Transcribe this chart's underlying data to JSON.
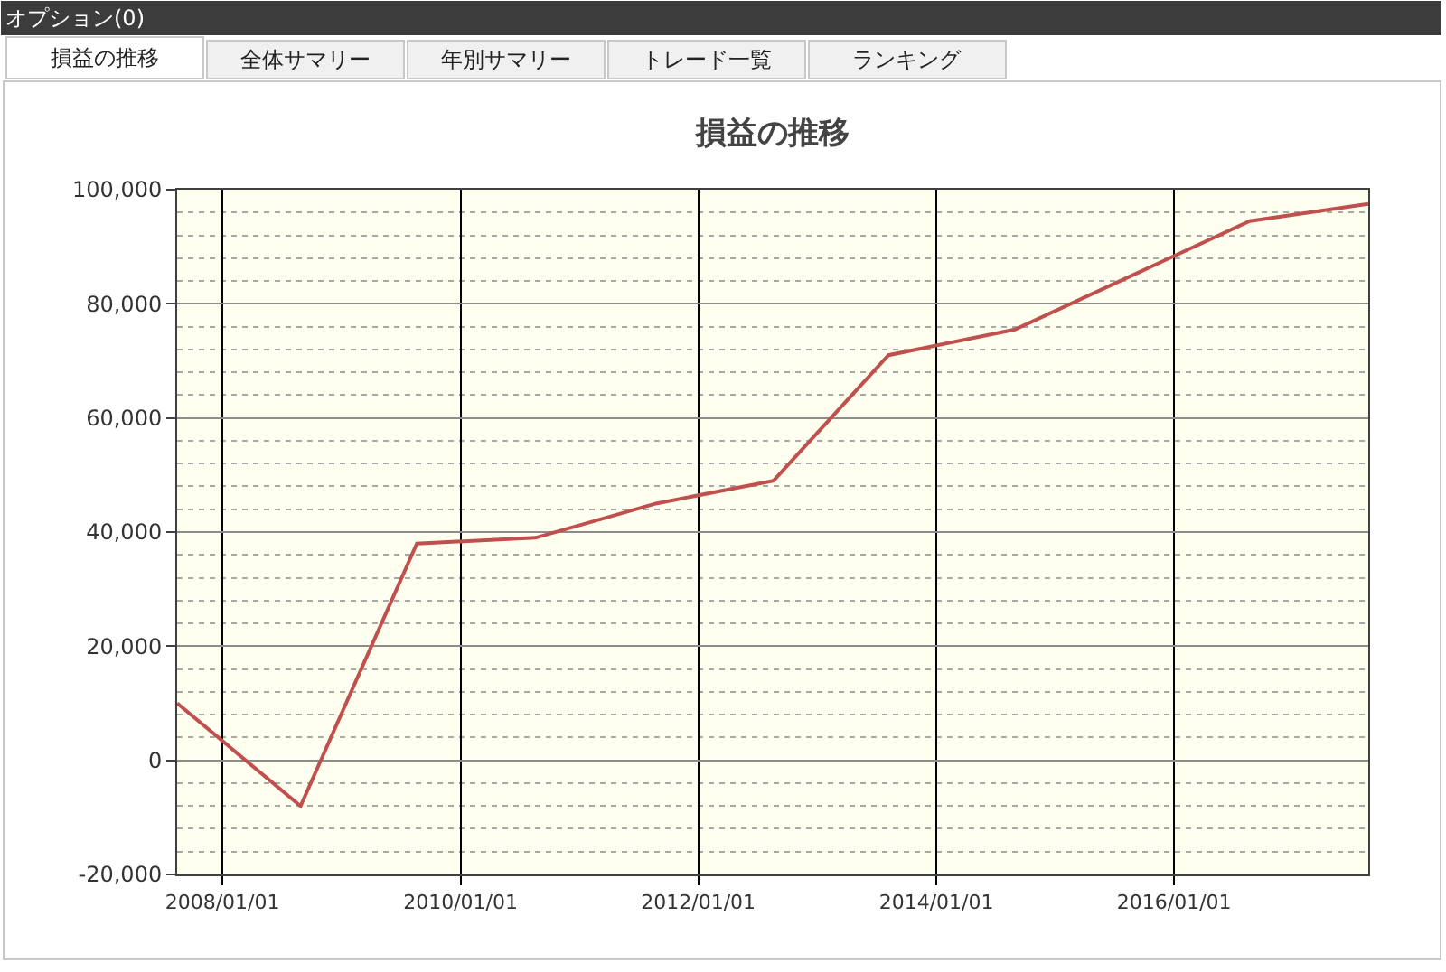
{
  "chart_data": {
    "type": "line",
    "title": "損益の推移",
    "x": [
      "2007-08-15",
      "2008-08-28",
      "2009-08-20",
      "2010-08-19",
      "2011-08-24",
      "2012-08-19",
      "2013-08-07",
      "2014-08-30",
      "2016-08-20",
      "2017-08-19"
    ],
    "series": [
      {
        "color": "#c0504d",
        "values": [
          10000,
          -8000,
          38000,
          39000,
          45000,
          49000,
          71000,
          75500,
          94500,
          97500
        ]
      }
    ],
    "xlim": [
      "2007-08-15",
      "2017-08-19"
    ],
    "xticks": [
      {
        "value": "2008-01-01",
        "label": "2008/01/01"
      },
      {
        "value": "2010-01-01",
        "label": "2010/01/01"
      },
      {
        "value": "2012-01-01",
        "label": "2012/01/01"
      },
      {
        "value": "2014-01-01",
        "label": "2014/01/01"
      },
      {
        "value": "2016-01-01",
        "label": "2016/01/01"
      }
    ],
    "ylim": [
      -20000,
      100000
    ],
    "yticks": [
      {
        "value": -20000,
        "label": "-20,000"
      },
      {
        "value": -16000,
        "label": null
      },
      {
        "value": -12000,
        "label": null
      },
      {
        "value": -8000,
        "label": null
      },
      {
        "value": -4000,
        "label": null
      },
      {
        "value": 0,
        "label": "0"
      },
      {
        "value": 4000,
        "label": null
      },
      {
        "value": 8000,
        "label": null
      },
      {
        "value": 12000,
        "label": null
      },
      {
        "value": 16000,
        "label": null
      },
      {
        "value": 20000,
        "label": "20,000"
      },
      {
        "value": 24000,
        "label": null
      },
      {
        "value": 28000,
        "label": null
      },
      {
        "value": 32000,
        "label": null
      },
      {
        "value": 36000,
        "label": null
      },
      {
        "value": 40000,
        "label": "40,000"
      },
      {
        "value": 44000,
        "label": null
      },
      {
        "value": 48000,
        "label": null
      },
      {
        "value": 52000,
        "label": null
      },
      {
        "value": 56000,
        "label": null
      },
      {
        "value": 60000,
        "label": "60,000"
      },
      {
        "value": 64000,
        "label": null
      },
      {
        "value": 68000,
        "label": null
      },
      {
        "value": 72000,
        "label": null
      },
      {
        "value": 76000,
        "label": null
      },
      {
        "value": 80000,
        "label": "80,000"
      },
      {
        "value": 84000,
        "label": null
      },
      {
        "value": 88000,
        "label": null
      },
      {
        "value": 92000,
        "label": null
      },
      {
        "value": 96000,
        "label": null
      },
      {
        "value": 100000,
        "label": "100,000"
      }
    ],
    "grid": true,
    "line_style": "solid",
    "annotations": [
      "オプション(0)",
      "損益の推移",
      "全体サマリー",
      "年別サマリー",
      "トレード一覧",
      "ランキング"
    ]
  }
}
